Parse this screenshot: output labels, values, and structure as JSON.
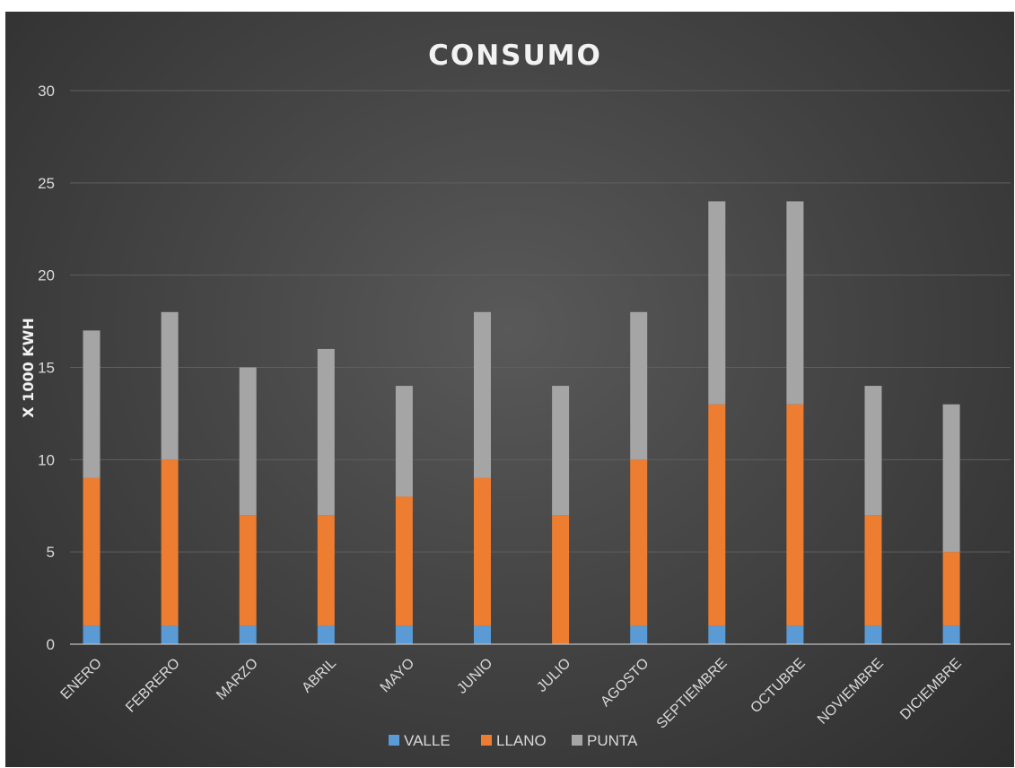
{
  "chart_data": {
    "type": "bar",
    "stacked": true,
    "title": "CONSUMO",
    "xlabel": "",
    "ylabel": "X 1000 KWH",
    "ylim": [
      0,
      30
    ],
    "yticks": [
      "0",
      "5",
      "10",
      "15",
      "20",
      "25",
      "30"
    ],
    "grid": "horizontal",
    "legend_position": "bottom",
    "categories": [
      "ENERO",
      "FEBRERO",
      "MARZO",
      "ABRIL",
      "MAYO",
      "JUNIO",
      "JULIO",
      "AGOSTO",
      "SEPTIEMBRE",
      "OCTUBRE",
      "NOVIEMBRE",
      "DICIEMBRE"
    ],
    "series": [
      {
        "name": "VALLE",
        "color": "#5b9bd5",
        "values": [
          1,
          1,
          1,
          1,
          1,
          1,
          0,
          1,
          1,
          1,
          1,
          1
        ]
      },
      {
        "name": "LLANO",
        "color": "#ed7d31",
        "values": [
          8,
          9,
          6,
          6,
          7,
          8,
          7,
          9,
          12,
          12,
          6,
          4
        ]
      },
      {
        "name": "PUNTA",
        "color": "#a5a5a5",
        "values": [
          8,
          8,
          8,
          9,
          6,
          9,
          7,
          8,
          11,
          11,
          7,
          8
        ]
      }
    ]
  }
}
